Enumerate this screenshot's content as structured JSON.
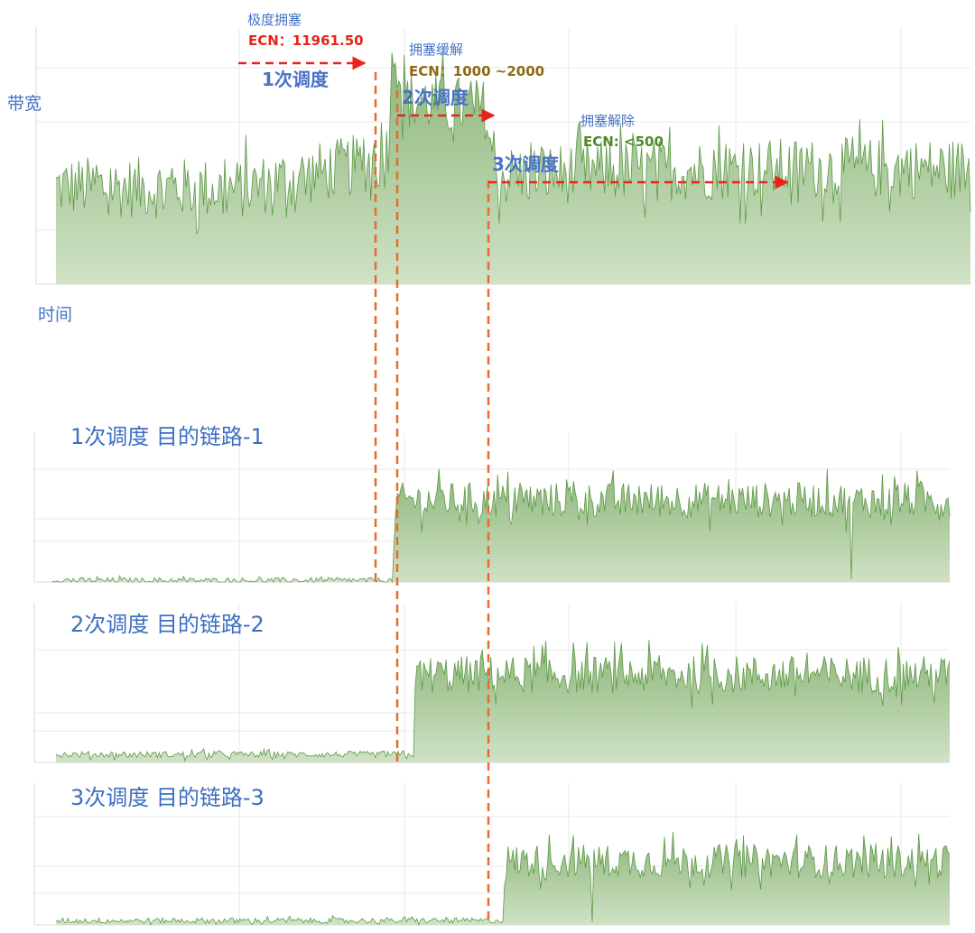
{
  "colors": {
    "fill_top": "#8db57a",
    "fill_bottom": "#cfe2c5",
    "line": "#5d9a46",
    "grid": "#e9e9e9",
    "arrow": "#e8231b",
    "guide": "#e86b2c"
  },
  "main_panel": {
    "ylabel": "带宽",
    "xlabel": "时间",
    "annotations": {
      "extreme_label": "极度拥塞",
      "extreme_ecn": "ECN：11961.50",
      "step1": "1次调度",
      "relieved_label": "拥塞缓解",
      "relieved_ecn": "ECN：1000 ~2000",
      "step2": "2次调度",
      "cleared_label": "拥塞解除",
      "cleared_ecn": "ECN: <500",
      "step3": "3次调度"
    }
  },
  "panels": [
    {
      "title": "1次调度 目的链路-1"
    },
    {
      "title": "2次调度 目的链路-2"
    },
    {
      "title": "3次调度 目的链路-3"
    }
  ],
  "chart_data": [
    {
      "type": "area",
      "title": "",
      "ylabel": "带宽",
      "xlabel": "时间",
      "x": [
        0,
        0.2,
        0.35,
        0.36,
        0.37,
        0.38,
        0.47,
        0.48,
        0.6,
        0.8,
        1.0
      ],
      "series": [
        {
          "values": [
            0.38,
            0.37,
            0.48,
            0.48,
            0.95,
            0.72,
            0.68,
            0.42,
            0.44,
            0.45,
            0.45
          ]
        }
      ],
      "events": [
        "1次调度",
        "2次调度",
        "3次调度"
      ],
      "grid": true
    },
    {
      "type": "area",
      "title": "1次调度 目的链路-1",
      "x": [
        0,
        0.38,
        0.383,
        1.0
      ],
      "series": [
        {
          "values": [
            0.01,
            0.01,
            0.55,
            0.55
          ]
        }
      ],
      "grid": true
    },
    {
      "type": "area",
      "title": "2次调度 目的链路-2",
      "x": [
        0,
        0.4,
        0.403,
        1.0
      ],
      "series": [
        {
          "values": [
            0.05,
            0.05,
            0.55,
            0.55
          ]
        }
      ],
      "grid": true
    },
    {
      "type": "area",
      "title": "3次调度 目的链路-3",
      "x": [
        0,
        0.5,
        0.503,
        1.0
      ],
      "series": [
        {
          "values": [
            0.03,
            0.03,
            0.45,
            0.45
          ]
        }
      ],
      "grid": true
    }
  ]
}
